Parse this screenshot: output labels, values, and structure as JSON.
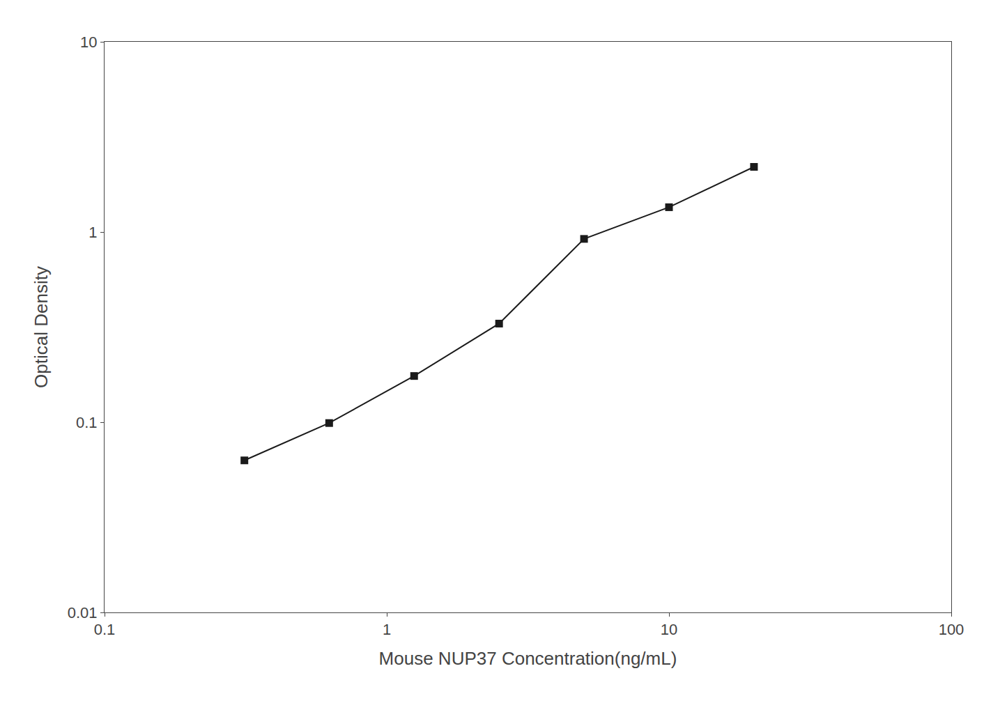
{
  "chart_data": {
    "type": "line",
    "x": [
      0.313,
      0.625,
      1.25,
      2.5,
      5.0,
      10.0,
      20.0
    ],
    "values": [
      0.063,
      0.099,
      0.175,
      0.33,
      0.92,
      1.35,
      2.2
    ],
    "xlabel": "Mouse NUP37 Concentration(ng/mL)",
    "ylabel": "Optical Density",
    "xlim": [
      0.1,
      100
    ],
    "xticks": [
      0.1,
      1,
      10,
      100
    ],
    "ylim": [
      0.01,
      10
    ],
    "yticks": [
      0.01,
      0.1,
      1,
      10
    ],
    "log": true,
    "grid": false,
    "color": "#1a1a1a",
    "marker": "square",
    "line_style": "solid"
  }
}
